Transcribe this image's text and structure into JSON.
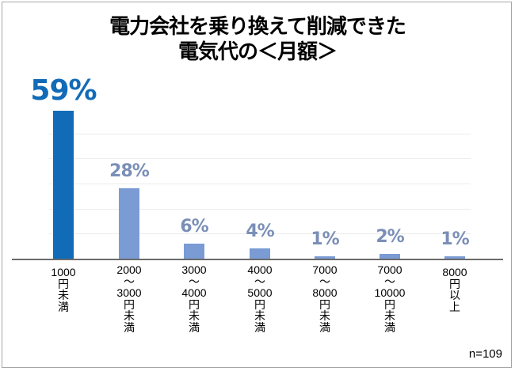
{
  "title": {
    "line1": "電力会社を乗り換えて削減できた",
    "line2": "電気代の＜月額＞"
  },
  "note": "n=109",
  "colors": {
    "highlight_bar": "#126bb7",
    "bar": "#7a9bd4",
    "value_label": "#7a8fb7",
    "axis": "#6b6b6b",
    "grid": "#ececec"
  },
  "chart_data": {
    "type": "bar",
    "title": "電力会社を乗り換えて削減できた電気代の＜月額＞",
    "xlabel": "",
    "ylabel": "",
    "ylim": [
      0,
      60
    ],
    "grid": true,
    "legend": null,
    "categories": [
      "1000円未満",
      "2000〜3000円未満",
      "3000〜4000円未満",
      "4000〜5000円未満",
      "7000〜8000円未満",
      "7000〜10000円未満",
      "8000円以上"
    ],
    "values": [
      59,
      28,
      6,
      4,
      1,
      2,
      1
    ],
    "value_labels": [
      "59%",
      "28%",
      "6%",
      "4%",
      "1%",
      "2%",
      "1%"
    ],
    "category_labels_display": [
      "1000\n円\n未\n満",
      "2000\n～\n3000\n円\n未\n満",
      "3000\n～\n4000\n円\n未\n満",
      "4000\n～\n5000\n円\n未\n満",
      "7000\n～\n8000\n円\n未\n満",
      "7000\n～\n10000\n円\n未\n満",
      "8000\n円\n以\n上"
    ],
    "annotations": [
      "n=109"
    ]
  }
}
